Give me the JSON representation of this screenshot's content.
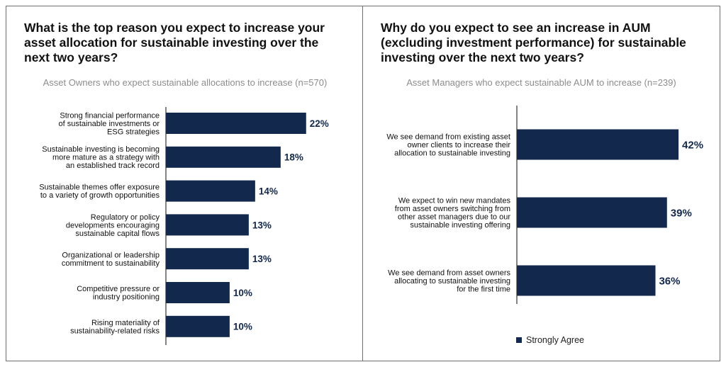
{
  "colors": {
    "bar": "#12284c",
    "label_text": "#111111",
    "value_text": "#12284c",
    "axis": "#333333"
  },
  "legend": {
    "label": "Strongly Agree"
  },
  "chart_data": [
    {
      "type": "bar",
      "orientation": "horizontal",
      "title": "What is the top reason you expect to increase your asset allocation for sustainable investing over the next two years?",
      "subtitle": "Asset Owners who expect sustainable allocations to increase (n=570)",
      "categories": [
        [
          "Strong financial performance",
          "of sustainable investments or",
          "ESG strategies"
        ],
        [
          "Sustainable investing is becoming",
          "more mature as a strategy with",
          "an established track record"
        ],
        [
          "Sustainable themes offer exposure",
          "to a variety of growth opportunities"
        ],
        [
          "Regulatory or policy",
          "developments encouraging",
          "sustainable capital flows"
        ],
        [
          "Organizational or leadership",
          "commitment to sustainability"
        ],
        [
          "Competitive pressure or",
          "industry positioning"
        ],
        [
          "Rising materiality of",
          "sustainability-related risks"
        ]
      ],
      "values": [
        22,
        18,
        14,
        13,
        13,
        10,
        10
      ],
      "value_labels": [
        "22%",
        "18%",
        "14%",
        "13%",
        "13%",
        "10%",
        "10%"
      ],
      "unit": "%"
    },
    {
      "type": "bar",
      "orientation": "horizontal",
      "title": "Why do you expect to see an increase in AUM (excluding investment performance) for sustainable investing over the next two years?",
      "subtitle": "Asset Managers who expect sustainable AUM to increase (n=239)",
      "categories": [
        [
          "We see demand from existing asset",
          "owner clients to increase their",
          "allocation to sustainable investing"
        ],
        [
          "We expect to win new mandates",
          "from asset owners switching from",
          "other asset managers due to our",
          "sustainable investing offering"
        ],
        [
          "We see demand from asset owners",
          "allocating to sustainable investing",
          "for the first time"
        ]
      ],
      "values": [
        42,
        39,
        36
      ],
      "value_labels": [
        "42%",
        "39%",
        "36%"
      ],
      "series": [
        {
          "name": "Strongly Agree",
          "values": [
            42,
            39,
            36
          ]
        }
      ],
      "unit": "%"
    }
  ]
}
